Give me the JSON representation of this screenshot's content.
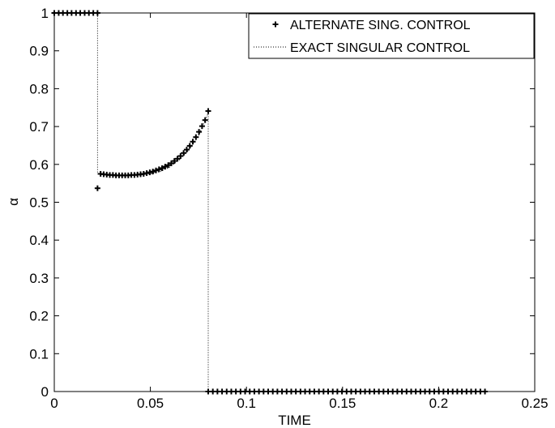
{
  "chart_data": {
    "type": "scatter",
    "xlabel": "TIME",
    "ylabel": "α",
    "xlim": [
      0,
      0.25
    ],
    "ylim": [
      0,
      1
    ],
    "xticks": [
      "0",
      "0.05",
      "0.1",
      "0.15",
      "0.2",
      "0.25"
    ],
    "xtick_values": [
      0,
      0.05,
      0.1,
      0.15,
      0.2,
      0.25
    ],
    "yticks": [
      "0",
      "0.1",
      "0.2",
      "0.3",
      "0.4",
      "0.5",
      "0.6",
      "0.7",
      "0.8",
      "0.9",
      "1"
    ],
    "ytick_values": [
      0,
      0.1,
      0.2,
      0.3,
      0.4,
      0.5,
      0.6,
      0.7,
      0.8,
      0.9,
      1
    ],
    "grid": false,
    "legend_position": "top-right",
    "series": [
      {
        "name": "ALTERNATE SING. CONTROL",
        "marker": "plus",
        "color": "#000000",
        "x": [
          0.0,
          0.0023,
          0.0045,
          0.0068,
          0.009,
          0.0113,
          0.0135,
          0.0158,
          0.018,
          0.0203,
          0.0225,
          0.0225,
          0.0241,
          0.0257,
          0.0273,
          0.0289,
          0.0305,
          0.0321,
          0.0337,
          0.0353,
          0.0369,
          0.0385,
          0.0401,
          0.0417,
          0.0433,
          0.0449,
          0.0465,
          0.0481,
          0.0497,
          0.0513,
          0.0529,
          0.0545,
          0.0561,
          0.0577,
          0.0593,
          0.0609,
          0.0625,
          0.0641,
          0.0657,
          0.0673,
          0.0689,
          0.0705,
          0.0721,
          0.0737,
          0.0753,
          0.0769,
          0.0785,
          0.0801,
          0.0801,
          0.0825,
          0.0849,
          0.0873,
          0.0897,
          0.0921,
          0.0945,
          0.0969,
          0.0993,
          0.1017,
          0.1041,
          0.1065,
          0.1089,
          0.1113,
          0.1137,
          0.1161,
          0.1185,
          0.1209,
          0.1233,
          0.1257,
          0.1281,
          0.1305,
          0.1329,
          0.1353,
          0.1377,
          0.1401,
          0.1425,
          0.1449,
          0.1473,
          0.1497,
          0.1521,
          0.1545,
          0.1569,
          0.1593,
          0.1617,
          0.1641,
          0.1665,
          0.1689,
          0.1713,
          0.1737,
          0.1761,
          0.1785,
          0.1809,
          0.1833,
          0.1857,
          0.1881,
          0.1905,
          0.1929,
          0.1953,
          0.1977,
          0.2001,
          0.2025,
          0.2049,
          0.2073,
          0.2097,
          0.2121,
          0.2145,
          0.2169,
          0.2193,
          0.2217,
          0.2241
        ],
        "y": [
          1,
          1,
          1,
          1,
          1,
          1,
          1,
          1,
          1,
          1,
          1,
          0.537,
          0.575,
          0.574,
          0.573,
          0.572,
          0.572,
          0.571,
          0.571,
          0.571,
          0.571,
          0.571,
          0.572,
          0.572,
          0.573,
          0.574,
          0.575,
          0.577,
          0.579,
          0.581,
          0.584,
          0.587,
          0.59,
          0.594,
          0.598,
          0.603,
          0.609,
          0.615,
          0.622,
          0.63,
          0.639,
          0.649,
          0.66,
          0.672,
          0.686,
          0.701,
          0.717,
          0.741,
          0,
          0,
          0,
          0,
          0,
          0,
          0,
          0,
          0,
          0,
          0,
          0,
          0,
          0,
          0,
          0,
          0,
          0,
          0,
          0,
          0,
          0,
          0,
          0,
          0,
          0,
          0,
          0,
          0,
          0,
          0,
          0,
          0,
          0,
          0,
          0,
          0,
          0,
          0,
          0,
          0,
          0,
          0,
          0,
          0,
          0,
          0,
          0,
          0,
          0,
          0,
          0,
          0,
          0,
          0,
          0,
          0,
          0,
          0,
          0,
          0
        ]
      },
      {
        "name": "EXACT SINGULAR CONTROL",
        "style": "dotted",
        "color": "#000000",
        "x": [
          0,
          0.0225,
          0.0225,
          0.024,
          0.03,
          0.035,
          0.04,
          0.045,
          0.05,
          0.055,
          0.06,
          0.065,
          0.07,
          0.075,
          0.08,
          0.0801,
          0.0801,
          0.224
        ],
        "y": [
          1,
          1,
          0.575,
          0.574,
          0.572,
          0.571,
          0.571,
          0.572,
          0.575,
          0.581,
          0.593,
          0.612,
          0.638,
          0.675,
          0.735,
          0.741,
          0,
          0
        ]
      }
    ]
  }
}
